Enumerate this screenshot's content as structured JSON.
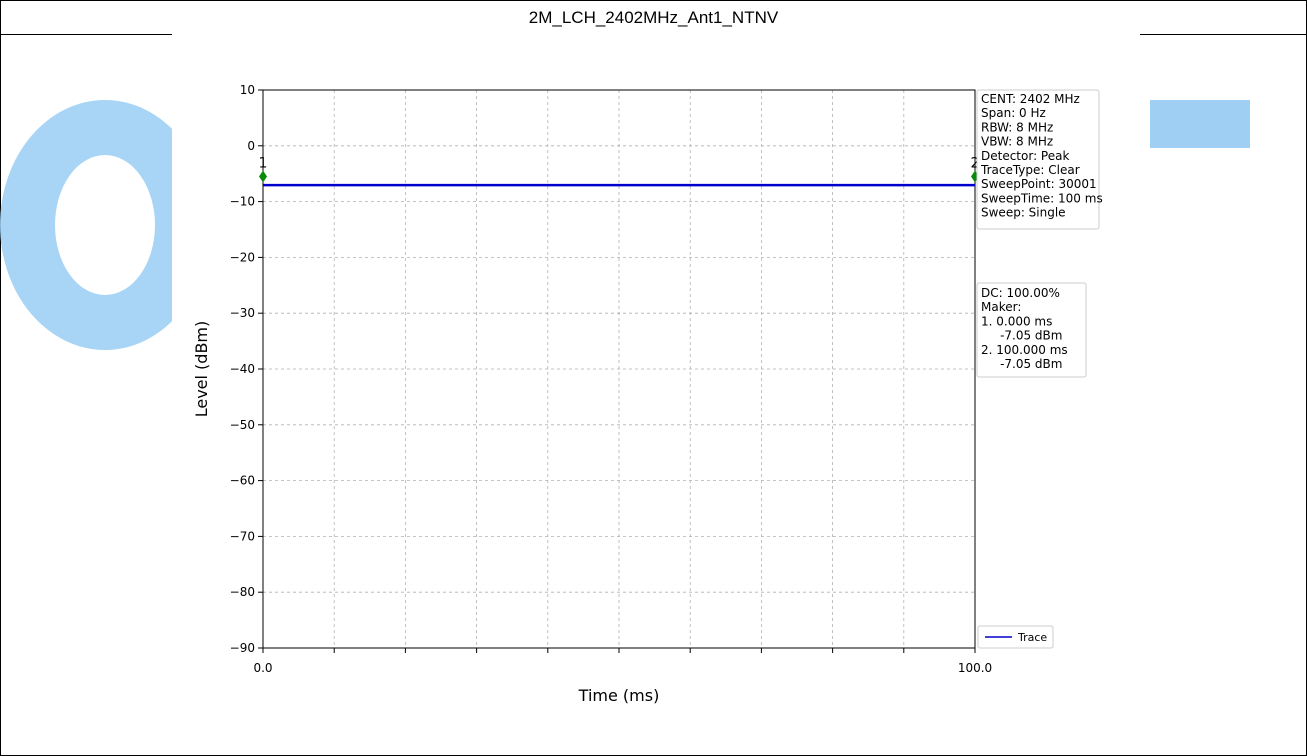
{
  "page": {
    "title": "2M_LCH_2402MHz_Ant1_NTNV"
  },
  "chart_data": {
    "type": "line",
    "title": "",
    "xlabel": "Time (ms)",
    "ylabel": "Level (dBm)",
    "xlim": [
      0,
      100
    ],
    "ylim": [
      -90,
      10
    ],
    "xticks": [
      0,
      10,
      20,
      30,
      40,
      50,
      60,
      70,
      80,
      90,
      100
    ],
    "xtick_labels": [
      "0.0",
      "",
      "",
      "",
      "",
      "",
      "",
      "",
      "",
      "",
      "100.0"
    ],
    "yticks": [
      10,
      0,
      -10,
      -20,
      -30,
      -40,
      -50,
      -60,
      -70,
      -80,
      -90
    ],
    "ytick_labels": [
      "10",
      "0",
      "−10",
      "−20",
      "−30",
      "−40",
      "−50",
      "−60",
      "−70",
      "−80",
      "−90"
    ],
    "grid": true,
    "series": [
      {
        "name": "Trace",
        "color": "#0000cc",
        "x": [
          0,
          100
        ],
        "y": [
          -7.05,
          -7.05
        ]
      }
    ],
    "markers": [
      {
        "label": "1",
        "x": 0,
        "y": -5.5,
        "color": "#0a8a0a"
      },
      {
        "label": "2",
        "x": 100,
        "y": -5.5,
        "color": "#0a8a0a"
      }
    ],
    "legend": {
      "placement": "bottom-right",
      "entries": [
        "Trace"
      ]
    },
    "info_box_1": [
      "CENT: 2402 MHz",
      "Span: 0 Hz",
      "RBW: 8 MHz",
      "VBW: 8 MHz",
      "Detector: Peak",
      "TraceType: Clear",
      "SweepPoint: 30001",
      "SweepTime: 100 ms",
      "Sweep: Single"
    ],
    "info_box_2": [
      "DC: 100.00%",
      "Maker:",
      "1. 0.000 ms",
      "     -7.05 dBm",
      "2. 100.000 ms",
      "     -7.05 dBm"
    ]
  },
  "colors": {
    "watermark": "#9fd0f4",
    "trace": "#0000cc",
    "marker": "#0a8a0a",
    "grid": "#b0b0b0"
  }
}
